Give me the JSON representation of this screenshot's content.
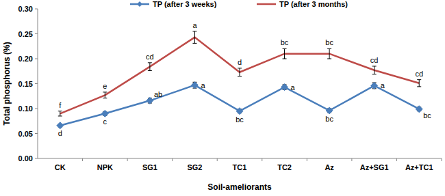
{
  "chart_data": {
    "type": "line",
    "x_label": "Soil-ameliorants",
    "y_label": "Total phosphorus (%)",
    "categories": [
      "CK",
      "NPK",
      "SG1",
      "SG2",
      "TC1",
      "TC2",
      "Az",
      "Az+SG1",
      "Az+TC1"
    ],
    "series": [
      {
        "name": "TP (after 3 weeks)",
        "color": "#4a7ebb",
        "marker": "diamond",
        "line_style": "solid",
        "values": [
          0.066,
          0.09,
          0.116,
          0.147,
          0.095,
          0.143,
          0.096,
          0.146,
          0.099
        ],
        "errors": [
          0.003,
          0.004,
          0.005,
          0.006,
          0.004,
          0.005,
          0.004,
          0.006,
          0.004
        ],
        "letters": [
          "d",
          "c",
          "ab",
          "a",
          "bc",
          "a",
          "bc",
          "a",
          "bc"
        ]
      },
      {
        "name": "TP (after 3 months)",
        "color": "#be4b48",
        "marker": "none",
        "line_style": "solid",
        "values": [
          0.09,
          0.127,
          0.184,
          0.243,
          0.173,
          0.21,
          0.21,
          0.177,
          0.151
        ],
        "errors": [
          0.005,
          0.006,
          0.008,
          0.012,
          0.008,
          0.01,
          0.01,
          0.008,
          0.007
        ],
        "letters": [
          "f",
          "e",
          "cd",
          "a",
          "d",
          "bc",
          "bc",
          "cd",
          "cd"
        ]
      }
    ],
    "ylim": [
      0,
      0.3
    ],
    "yticks": [
      {
        "value": 0,
        "label": "0.00"
      },
      {
        "value": 0.05,
        "label": "0.05"
      },
      {
        "value": 0.1,
        "label": "0.10"
      },
      {
        "value": 0.15,
        "label": "0.15"
      },
      {
        "value": 0.2,
        "label": "0.20"
      },
      {
        "value": 0.25,
        "label": "0.25"
      },
      {
        "value": 0.3,
        "label": "0.30"
      }
    ],
    "grid": false,
    "legend": "top"
  }
}
